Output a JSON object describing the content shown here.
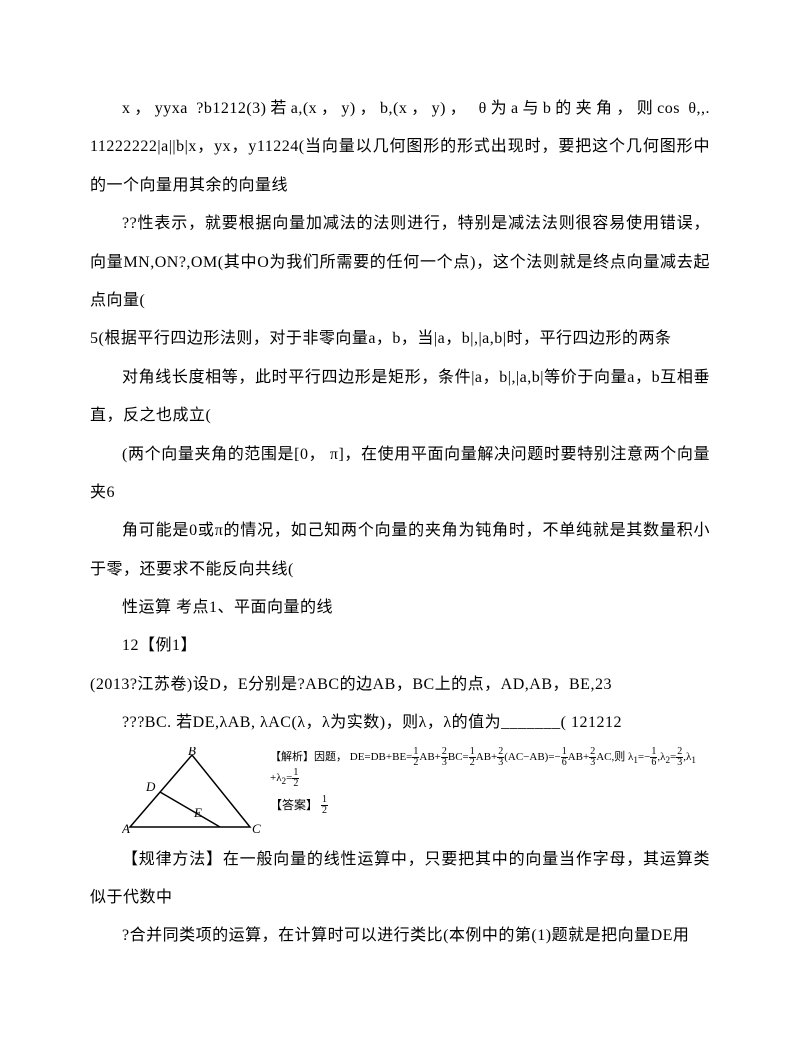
{
  "doc": {
    "p1": "x，yyxa ?b1212(3)若a,(x，y)，b,(x，y)， θ为a与b的夹角，则cos θ,,. 11222222|a||b|x，yx，y11224(当向量以几何图形的形式出现时，要把这个几何图形中的一个向量用其余的向量线",
    "p2": "??性表示，就要根据向量加减法的法则进行，特别是减法法则很容易使用错误，向量MN,ON?,OM(其中O为我们所需要的任何一个点)，这个法则就是终点向量减去起点向量(",
    "p3": "5(根据平行四边形法则，对于非零向量a，b，当|a，b|,|a,b|时，平行四边形的两条",
    "p4": "对角线长度相等，此时平行四边形是矩形，条件|a，b|,|a,b|等价于向量a，b互相垂直，反之也成立(",
    "p5": "(两个向量夹角的范围是[0， π]，在使用平面向量解决问题时要特别注意两个向量夹6",
    "p6": "角可能是0或π的情况，如己知两个向量的夹角为钝角时，不单纯就是其数量积小于零，还要求不能反向共线(",
    "p7": "性运算 考点1、平面向量的线",
    "p8": "12【例1】",
    "p9": "(2013?江苏卷)设D，E分别是?ABC的边AB，BC上的点，AD,AB，BE,23",
    "p10": "???BC. 若DE,λAB, λAC(λ，λ为实数)，则λ，λ的值为_______( 121212",
    "p11": "【规律方法】在一般向量的线性运算中，只要把其中的向量当作字母，其运算类似于代数中",
    "p12": "?合并同类项的运算，在计算时可以进行类比(本例中的第(1)题就是把向量DE用"
  },
  "figure": {
    "labels": {
      "A": "A",
      "B": "B",
      "C": "C",
      "D": "D",
      "E": "E"
    },
    "line_color": "#000000",
    "bg": "#ffffff",
    "formula_prefix": "【解析】因题，",
    "formula_body_html": "DE=DB+BE=<span class='frac'><span class='num'>1</span><span class='den'>2</span></span>AB+<span class='frac'><span class='num'>2</span><span class='den'>3</span></span>BC=<span class='frac'><span class='num'>1</span><span class='den'>2</span></span>AB+<span class='frac'><span class='num'>2</span><span class='den'>3</span></span>(AC−AB)=−<span class='frac'><span class='num'>1</span><span class='den'>6</span></span>AB+<span class='frac'><span class='num'>2</span><span class='den'>3</span></span>AC,则 λ<sub>1</sub>=−<span class='frac'><span class='num'>1</span><span class='den'>6</span></span>,λ<sub>2</sub>=<span class='frac'><span class='num'>2</span><span class='den'>3</span></span>,λ<sub>1</sub>",
    "formula_tail_html": "+λ<sub>2</sub>=<span class='frac'><span class='num'>1</span><span class='den'>2</span></span>",
    "answer_prefix": "【答案】",
    "answer_html": "<span class='frac'><span class='num'>1</span><span class='den'>2</span></span>"
  },
  "style": {
    "text_color": "#000000",
    "background_color": "#ffffff",
    "font_size_body": 16,
    "font_size_formula": 11,
    "line_height": 2.4
  }
}
